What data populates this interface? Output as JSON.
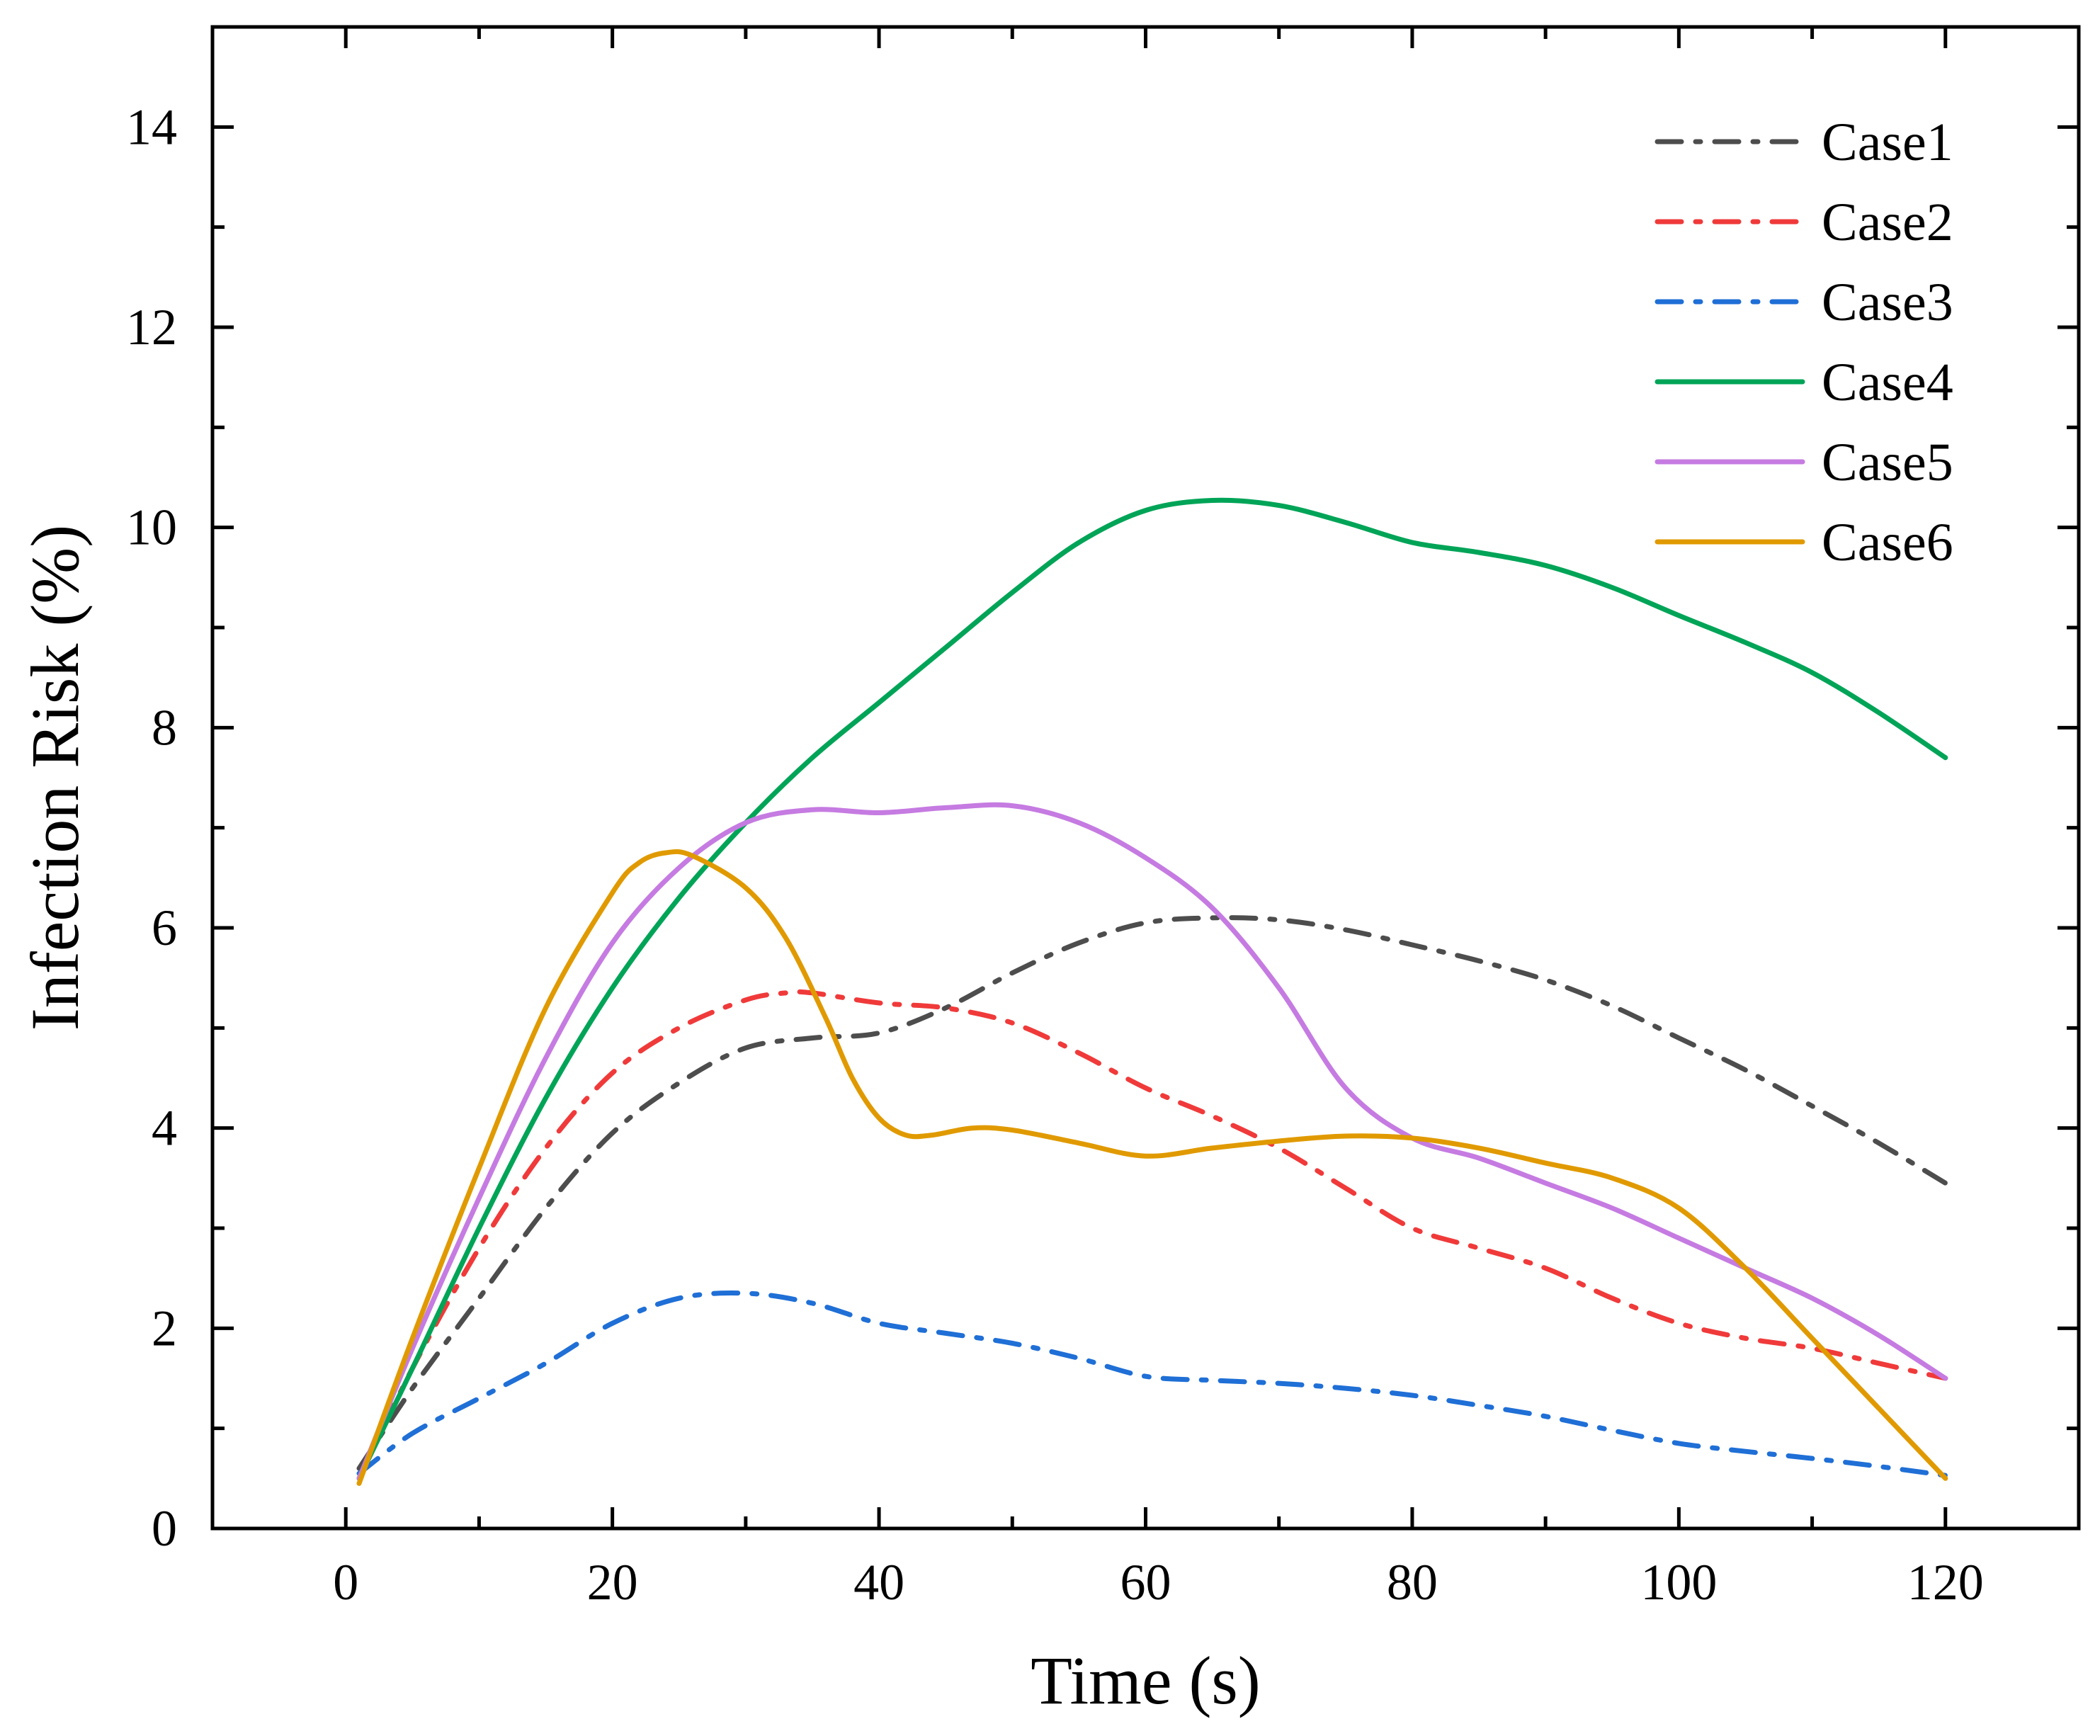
{
  "chart_data": {
    "type": "line",
    "title": "",
    "xlabel": "Time (s)",
    "ylabel": "Infection Risk (%)",
    "xlim": [
      -10,
      130
    ],
    "ylim": [
      0,
      15
    ],
    "xticks": [
      0,
      20,
      40,
      60,
      80,
      100,
      120
    ],
    "yticks": [
      0,
      2,
      4,
      6,
      8,
      10,
      12,
      14
    ],
    "xtick_labels": [
      "0",
      "20",
      "40",
      "60",
      "80",
      "100",
      "120"
    ],
    "ytick_labels": [
      "0",
      "2",
      "4",
      "6",
      "8",
      "10",
      "12",
      "14"
    ],
    "x_minor_step": 10,
    "y_minor_step": 1,
    "grid": false,
    "legend_position": "top-right",
    "series": [
      {
        "name": "Case1",
        "color": "#4d4d4d",
        "style": "dashdot",
        "x": [
          1,
          5,
          10,
          15,
          20,
          25,
          30,
          35,
          40,
          45,
          50,
          55,
          60,
          65,
          70,
          75,
          80,
          85,
          90,
          95,
          100,
          105,
          110,
          115,
          120
        ],
        "y": [
          0.6,
          1.4,
          2.3,
          3.2,
          3.95,
          4.45,
          4.8,
          4.9,
          4.95,
          5.2,
          5.55,
          5.85,
          6.05,
          6.1,
          6.08,
          5.98,
          5.83,
          5.67,
          5.48,
          5.22,
          4.9,
          4.58,
          4.22,
          3.85,
          3.45
        ]
      },
      {
        "name": "Case2",
        "color": "#f03a3a",
        "style": "dashdot",
        "x": [
          1,
          5,
          10,
          15,
          20,
          25,
          30,
          33,
          35,
          40,
          45,
          50,
          55,
          60,
          65,
          70,
          75,
          80,
          85,
          90,
          95,
          100,
          105,
          110,
          115,
          120
        ],
        "y": [
          0.5,
          1.6,
          2.8,
          3.8,
          4.55,
          5.0,
          5.28,
          5.35,
          5.35,
          5.25,
          5.2,
          5.05,
          4.75,
          4.4,
          4.12,
          3.8,
          3.4,
          3.0,
          2.8,
          2.6,
          2.3,
          2.05,
          1.9,
          1.8,
          1.65,
          1.5
        ]
      },
      {
        "name": "Case3",
        "color": "#1f6fd6",
        "style": "dashdot",
        "x": [
          1,
          5,
          10,
          15,
          20,
          25,
          30,
          35,
          40,
          45,
          50,
          55,
          60,
          65,
          70,
          75,
          80,
          85,
          90,
          95,
          100,
          105,
          110,
          115,
          120
        ],
        "y": [
          0.55,
          0.95,
          1.3,
          1.65,
          2.05,
          2.3,
          2.35,
          2.25,
          2.05,
          1.95,
          1.85,
          1.7,
          1.52,
          1.48,
          1.45,
          1.4,
          1.33,
          1.23,
          1.12,
          0.98,
          0.85,
          0.77,
          0.7,
          0.62,
          0.53
        ]
      },
      {
        "name": "Case4",
        "color": "#00a457",
        "style": "solid",
        "x": [
          1,
          5,
          10,
          15,
          20,
          25,
          30,
          35,
          40,
          45,
          50,
          55,
          60,
          65,
          70,
          75,
          80,
          85,
          90,
          95,
          100,
          105,
          110,
          115,
          120
        ],
        "y": [
          0.5,
          1.6,
          3.0,
          4.3,
          5.4,
          6.3,
          7.05,
          7.7,
          8.25,
          8.8,
          9.35,
          9.85,
          10.17,
          10.27,
          10.22,
          10.05,
          9.85,
          9.75,
          9.62,
          9.4,
          9.12,
          8.85,
          8.55,
          8.15,
          7.7
        ]
      },
      {
        "name": "Case5",
        "color": "#c57be1",
        "style": "solid",
        "x": [
          1,
          5,
          10,
          15,
          20,
          25,
          30,
          35,
          40,
          45,
          50,
          55,
          60,
          65,
          70,
          75,
          80,
          85,
          90,
          95,
          100,
          105,
          110,
          115,
          120
        ],
        "y": [
          0.5,
          1.8,
          3.3,
          4.7,
          5.85,
          6.6,
          7.05,
          7.18,
          7.15,
          7.2,
          7.22,
          7.05,
          6.7,
          6.2,
          5.4,
          4.4,
          3.9,
          3.7,
          3.45,
          3.2,
          2.9,
          2.6,
          2.3,
          1.93,
          1.5
        ]
      },
      {
        "name": "Case6",
        "color": "#e09a00",
        "style": "solid",
        "x": [
          1,
          5,
          10,
          15,
          20,
          22,
          24,
          26,
          30,
          33,
          36,
          38,
          40,
          42,
          44,
          47,
          50,
          55,
          60,
          65,
          70,
          75,
          80,
          85,
          90,
          95,
          100,
          105,
          110,
          115,
          120
        ],
        "y": [
          0.45,
          1.9,
          3.6,
          5.2,
          6.35,
          6.65,
          6.75,
          6.72,
          6.4,
          5.9,
          5.1,
          4.5,
          4.1,
          3.93,
          3.93,
          4.0,
          3.98,
          3.85,
          3.72,
          3.8,
          3.87,
          3.92,
          3.9,
          3.8,
          3.65,
          3.5,
          3.2,
          2.6,
          1.9,
          1.2,
          0.5
        ]
      }
    ]
  }
}
